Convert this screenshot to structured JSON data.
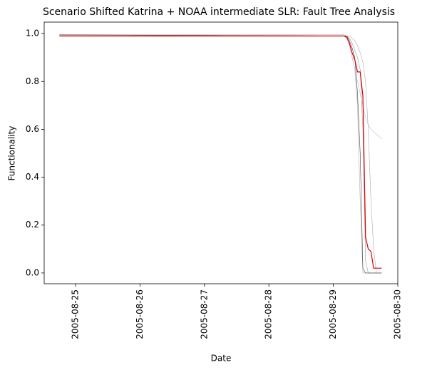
{
  "chart_data": {
    "type": "line",
    "title": "Scenario Shifted Katrina + NOAA intermediate SLR: Fault Tree Analysis",
    "xlabel": "Date",
    "ylabel": "Functionality",
    "x": [
      "2005-08-24T18:00",
      "2005-08-29T04:00",
      "2005-08-29T05:00",
      "2005-08-29T06:00",
      "2005-08-29T07:00",
      "2005-08-29T08:00",
      "2005-08-29T09:00",
      "2005-08-29T10:00",
      "2005-08-29T11:00",
      "2005-08-29T12:00",
      "2005-08-29T13:00",
      "2005-08-29T14:00",
      "2005-08-29T15:00",
      "2005-08-29T16:00",
      "2005-08-29T17:00",
      "2005-08-29T18:00"
    ],
    "series": [
      {
        "color": "#b0b0b0",
        "values": [
          0.995,
          0.99,
          0.98,
          0.95,
          0.9,
          0.85,
          0.7,
          0.3,
          0,
          0,
          0,
          0,
          0,
          0,
          0,
          0
        ]
      },
      {
        "color": "#999999",
        "values": [
          0.995,
          0.99,
          0.99,
          0.98,
          0.96,
          0.93,
          0.9,
          0.85,
          0.6,
          0.05,
          0,
          0,
          0,
          0,
          0,
          0
        ]
      },
      {
        "color": "#aaaaaa",
        "values": [
          0.995,
          0.995,
          0.99,
          0.99,
          0.98,
          0.97,
          0.95,
          0.92,
          0.88,
          0.8,
          0.6,
          0.3,
          0.1,
          0,
          0,
          0
        ]
      },
      {
        "color": "#b0c4de",
        "values": [
          0.995,
          0.99,
          0.98,
          0.95,
          0.9,
          0.85,
          0.8,
          0.75,
          0.7,
          0.65,
          0.62,
          0.6,
          0.59,
          0.58,
          0.57,
          0.56
        ]
      },
      {
        "color": "#444444",
        "values": [
          0.995,
          0.99,
          0.99,
          0.97,
          0.94,
          0.9,
          0.75,
          0.5,
          0.02,
          0,
          0,
          0,
          0,
          0,
          0,
          0
        ]
      },
      {
        "color": "#e00000",
        "values": [
          0.99,
          0.99,
          0.985,
          0.96,
          0.92,
          0.89,
          0.84,
          0.84,
          0.74,
          0.15,
          0.1,
          0.09,
          0.02,
          0.02,
          0.02,
          0.02
        ]
      }
    ],
    "xlim": [
      "2005-08-24T12:20",
      "2005-08-30T00:00"
    ],
    "xticks": [
      "2005-08-25",
      "2005-08-26",
      "2005-08-27",
      "2005-08-28",
      "2005-08-29",
      "2005-08-30"
    ],
    "ylim": [
      -0.045,
      1.048
    ],
    "yticks": [
      {
        "value": 0,
        "label": "0.0"
      },
      0.2,
      0.4,
      0.6,
      0.8,
      {
        "value": 1,
        "label": "1.0"
      }
    ]
  }
}
